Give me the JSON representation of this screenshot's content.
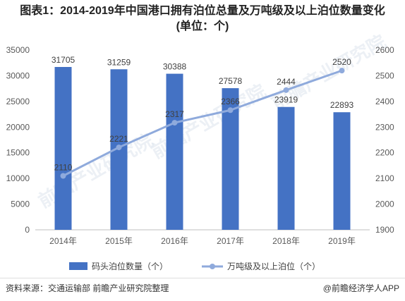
{
  "title_line1": "图表1：2014-2019年中国港口拥有泊位总量及万吨级及以上泊位数量变化",
  "title_line2": "(单位：个)",
  "footer": {
    "source": "资料来源：交通运输部 前瞻产业研究院整理",
    "brand": "@前瞻经济学人APP"
  },
  "watermark": "前瞻产业研究院",
  "chart_data": {
    "type": "bar",
    "categories": [
      "2014年",
      "2015年",
      "2016年",
      "2017年",
      "2018年",
      "2019年"
    ],
    "series": [
      {
        "name": "码头泊位数量（个）",
        "type": "bar",
        "axis": "left",
        "color": "#4472c4",
        "values": [
          31705,
          31259,
          30388,
          27578,
          23919,
          22893
        ]
      },
      {
        "name": "万吨级及以上泊位（个）",
        "type": "line",
        "axis": "right",
        "color": "#8faadc",
        "values": [
          2110,
          2221,
          2317,
          2366,
          2444,
          2520
        ]
      }
    ],
    "y_left": {
      "min": 0,
      "max": 35000,
      "ticks": [
        0,
        5000,
        10000,
        15000,
        20000,
        25000,
        30000,
        35000
      ]
    },
    "y_right": {
      "min": 1900,
      "max": 2600,
      "ticks": [
        1900,
        2000,
        2100,
        2200,
        2300,
        2400,
        2500,
        2600
      ]
    },
    "grid": false,
    "legend": "bottom"
  }
}
